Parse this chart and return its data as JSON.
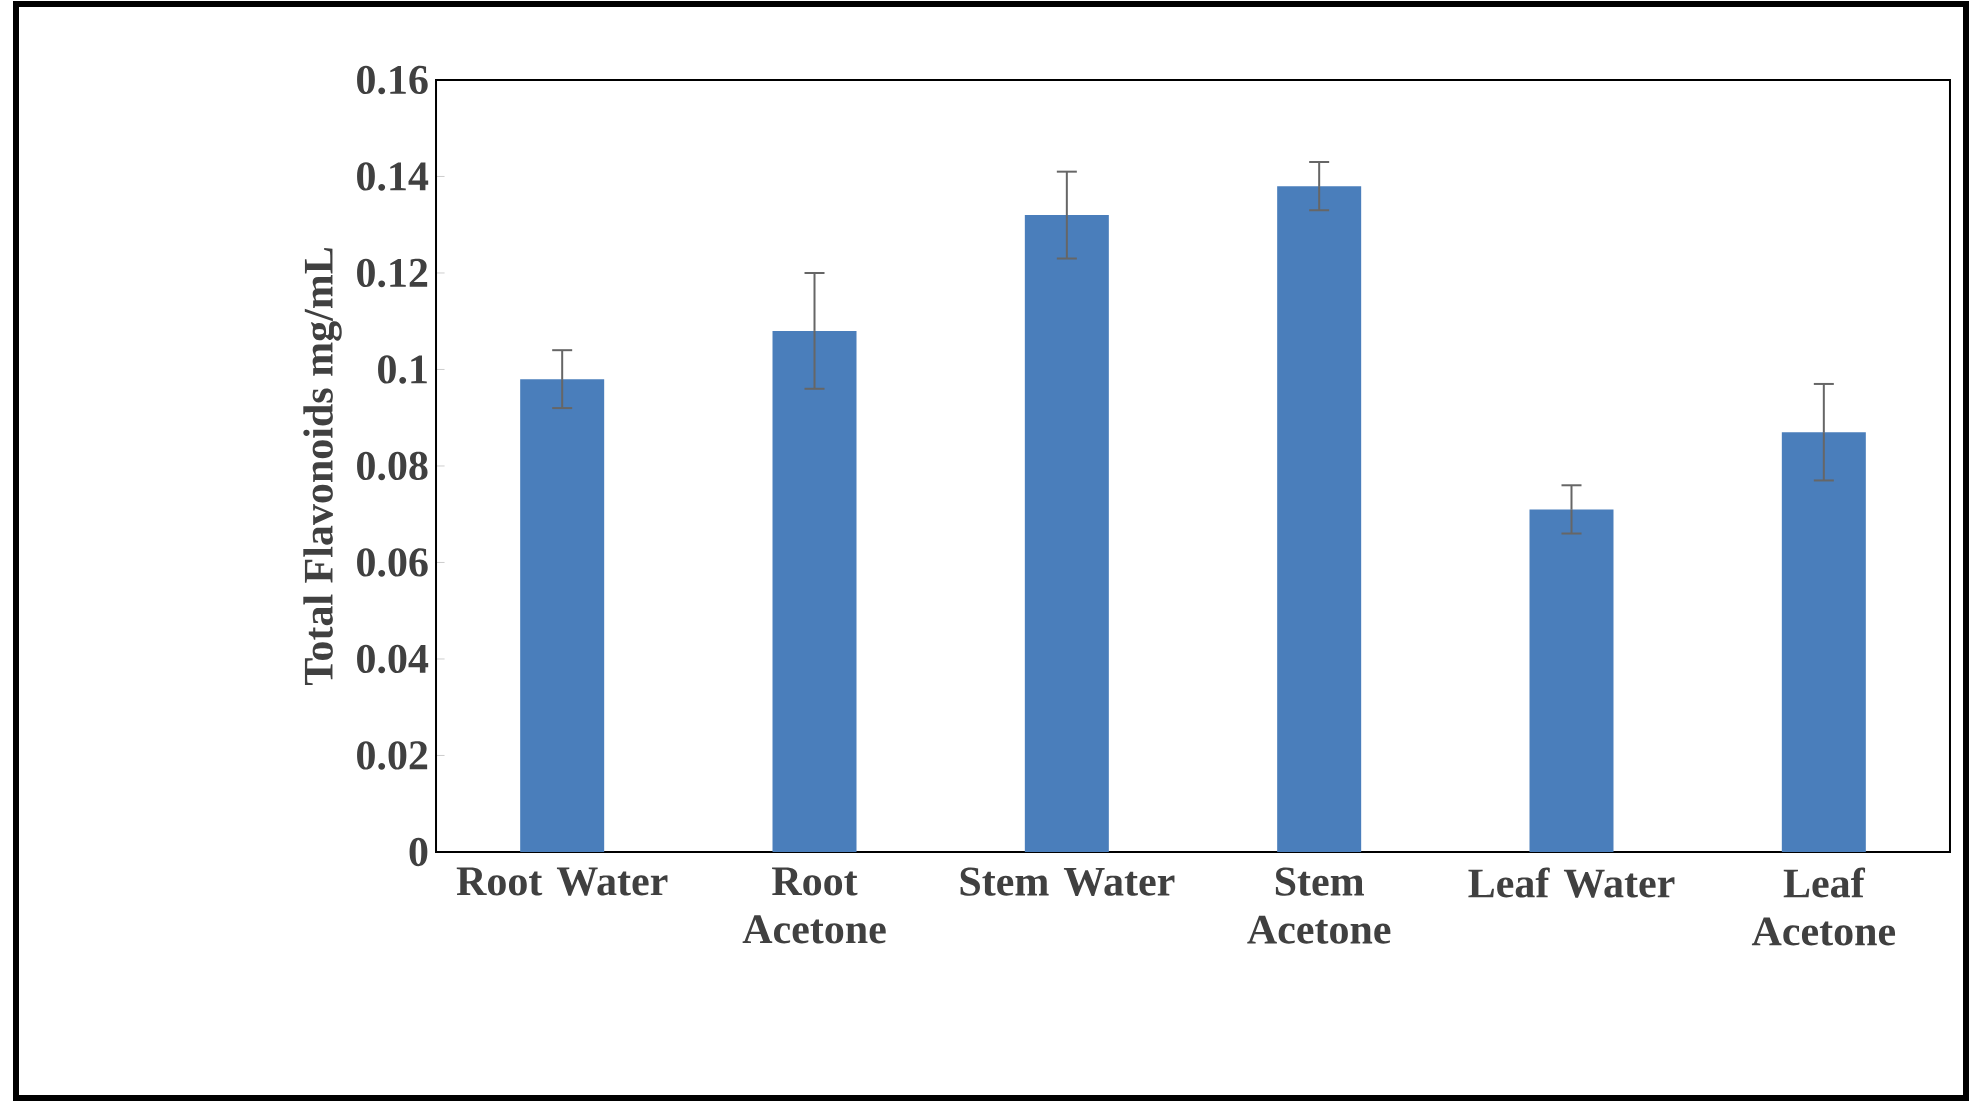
{
  "chart_data": {
    "type": "bar",
    "ylabel": "Total Flavonoids mg/mL",
    "categories": [
      "Root Water",
      "Root Acetone",
      "Stem Water",
      "Stem Acetone",
      "Leaf Water",
      "Leaf Acetone"
    ],
    "values": [
      0.098,
      0.108,
      0.132,
      0.138,
      0.071,
      0.087
    ],
    "errors": [
      0.006,
      0.012,
      0.009,
      0.005,
      0.005,
      0.01
    ],
    "color": "#4a7ebb",
    "ylim": [
      0,
      0.16
    ],
    "yticks": [
      0,
      0.02,
      0.04,
      0.06,
      0.08,
      0.1,
      0.12,
      0.14,
      0.16
    ],
    "grid": false
  }
}
